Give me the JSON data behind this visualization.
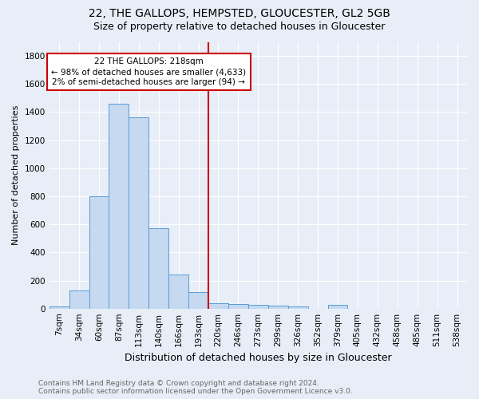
{
  "title": "22, THE GALLOPS, HEMPSTED, GLOUCESTER, GL2 5GB",
  "subtitle": "Size of property relative to detached houses in Gloucester",
  "xlabel": "Distribution of detached houses by size in Gloucester",
  "ylabel": "Number of detached properties",
  "footnote": "Contains HM Land Registry data © Crown copyright and database right 2024.\nContains public sector information licensed under the Open Government Licence v3.0.",
  "categories": [
    "7sqm",
    "34sqm",
    "60sqm",
    "87sqm",
    "113sqm",
    "140sqm",
    "166sqm",
    "193sqm",
    "220sqm",
    "246sqm",
    "273sqm",
    "299sqm",
    "326sqm",
    "352sqm",
    "379sqm",
    "405sqm",
    "432sqm",
    "458sqm",
    "485sqm",
    "511sqm",
    "538sqm"
  ],
  "values": [
    15,
    130,
    800,
    1460,
    1360,
    570,
    245,
    115,
    40,
    30,
    25,
    20,
    15,
    0,
    25,
    0,
    0,
    0,
    0,
    0,
    0
  ],
  "bar_color": "#c5d9f0",
  "bar_edge_color": "#5a9bd5",
  "vline_color": "#cc0000",
  "annotation_text": "22 THE GALLOPS: 218sqm\n← 98% of detached houses are smaller (4,633)\n2% of semi-detached houses are larger (94) →",
  "annotation_box_color": "#cc0000",
  "ylim": [
    0,
    1900
  ],
  "yticks": [
    0,
    200,
    400,
    600,
    800,
    1000,
    1200,
    1400,
    1600,
    1800
  ],
  "background_color": "#e8eef7",
  "grid_color": "#ffffff",
  "title_fontsize": 10,
  "subtitle_fontsize": 9,
  "ylabel_fontsize": 8,
  "xlabel_fontsize": 9,
  "tick_fontsize": 7.5,
  "footnote_fontsize": 6.5
}
